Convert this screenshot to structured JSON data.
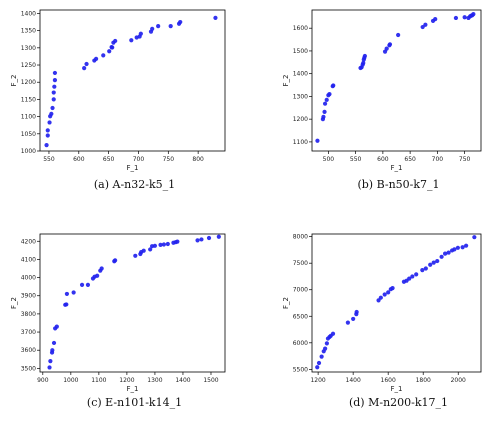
{
  "point_color": "#2222ee",
  "chart_data": [
    {
      "type": "scatter",
      "caption": "(a) A-n32-k5_1",
      "xlabel": "F_1",
      "ylabel": "F_2",
      "xlim": [
        535,
        845
      ],
      "ylim": [
        1000,
        1410
      ],
      "xticks": [
        550,
        600,
        650,
        700,
        750,
        800
      ],
      "yticks": [
        1000,
        1050,
        1100,
        1150,
        1200,
        1250,
        1300,
        1350,
        1400
      ],
      "points": [
        [
          546,
          1017
        ],
        [
          548,
          1045
        ],
        [
          548,
          1060
        ],
        [
          551,
          1083
        ],
        [
          552,
          1101
        ],
        [
          554,
          1108
        ],
        [
          556,
          1125
        ],
        [
          558,
          1150
        ],
        [
          558,
          1170
        ],
        [
          559,
          1187
        ],
        [
          560,
          1206
        ],
        [
          560,
          1227
        ],
        [
          609,
          1241
        ],
        [
          613,
          1253
        ],
        [
          626,
          1263
        ],
        [
          629,
          1268
        ],
        [
          641,
          1278
        ],
        [
          651,
          1290
        ],
        [
          655,
          1302
        ],
        [
          656,
          1301
        ],
        [
          658,
          1315
        ],
        [
          661,
          1320
        ],
        [
          688,
          1322
        ],
        [
          697,
          1330
        ],
        [
          702,
          1333
        ],
        [
          704,
          1341
        ],
        [
          721,
          1347
        ],
        [
          723,
          1355
        ],
        [
          733,
          1363
        ],
        [
          754,
          1363
        ],
        [
          768,
          1370
        ],
        [
          770,
          1375
        ],
        [
          829,
          1387
        ]
      ]
    },
    {
      "type": "scatter",
      "caption": "(b) B-n50-k7_1",
      "xlabel": "F_1",
      "ylabel": "F_2",
      "xlim": [
        470,
        780
      ],
      "ylim": [
        1060,
        1680
      ],
      "xticks": [
        500,
        550,
        600,
        650,
        700,
        750
      ],
      "yticks": [
        1100,
        1200,
        1300,
        1400,
        1500,
        1600
      ],
      "points": [
        [
          480,
          1105
        ],
        [
          490,
          1200
        ],
        [
          491,
          1210
        ],
        [
          493,
          1232
        ],
        [
          494,
          1268
        ],
        [
          497,
          1285
        ],
        [
          500,
          1305
        ],
        [
          502,
          1310
        ],
        [
          508,
          1345
        ],
        [
          509,
          1348
        ],
        [
          559,
          1425
        ],
        [
          561,
          1428
        ],
        [
          563,
          1440
        ],
        [
          564,
          1447
        ],
        [
          565,
          1462
        ],
        [
          566,
          1470
        ],
        [
          567,
          1478
        ],
        [
          604,
          1497
        ],
        [
          607,
          1510
        ],
        [
          612,
          1525
        ],
        [
          613,
          1529
        ],
        [
          628,
          1570
        ],
        [
          673,
          1605
        ],
        [
          678,
          1615
        ],
        [
          692,
          1632
        ],
        [
          696,
          1640
        ],
        [
          734,
          1645
        ],
        [
          750,
          1648
        ],
        [
          757,
          1645
        ],
        [
          760,
          1652
        ],
        [
          762,
          1655
        ],
        [
          764,
          1657
        ],
        [
          766,
          1662
        ]
      ]
    },
    {
      "type": "scatter",
      "caption": "(c) E-n101-k14_1",
      "xlabel": "F_1",
      "ylabel": "F_2",
      "xlim": [
        890,
        1550
      ],
      "ylim": [
        3480,
        4240
      ],
      "xticks": [
        900,
        1000,
        1100,
        1200,
        1300,
        1400,
        1500
      ],
      "yticks": [
        3500,
        3600,
        3700,
        3800,
        3900,
        4000,
        4100,
        4200
      ],
      "points": [
        [
          924,
          3505
        ],
        [
          927,
          3540
        ],
        [
          933,
          3587
        ],
        [
          934,
          3600
        ],
        [
          940,
          3640
        ],
        [
          944,
          3720
        ],
        [
          950,
          3730
        ],
        [
          980,
          3850
        ],
        [
          984,
          3852
        ],
        [
          986,
          3910
        ],
        [
          1010,
          3918
        ],
        [
          1040,
          3960
        ],
        [
          1061,
          3960
        ],
        [
          1079,
          3995
        ],
        [
          1085,
          4005
        ],
        [
          1094,
          4010
        ],
        [
          1105,
          4038
        ],
        [
          1110,
          4050
        ],
        [
          1155,
          4090
        ],
        [
          1158,
          4095
        ],
        [
          1230,
          4120
        ],
        [
          1248,
          4130
        ],
        [
          1251,
          4140
        ],
        [
          1260,
          4148
        ],
        [
          1283,
          4155
        ],
        [
          1290,
          4173
        ],
        [
          1300,
          4175
        ],
        [
          1320,
          4180
        ],
        [
          1332,
          4182
        ],
        [
          1346,
          4185
        ],
        [
          1366,
          4192
        ],
        [
          1374,
          4195
        ],
        [
          1380,
          4198
        ],
        [
          1452,
          4205
        ],
        [
          1466,
          4210
        ],
        [
          1493,
          4218
        ],
        [
          1528,
          4225
        ]
      ]
    },
    {
      "type": "scatter",
      "caption": "(d) M-n200-k17_1",
      "xlabel": "F_1",
      "ylabel": "F_2",
      "xlim": [
        1165,
        2130
      ],
      "ylim": [
        5450,
        8050
      ],
      "xticks": [
        1200,
        1400,
        1600,
        1800,
        2000
      ],
      "yticks": [
        5500,
        6000,
        6500,
        7000,
        7500,
        8000
      ],
      "points": [
        [
          1195,
          5540
        ],
        [
          1205,
          5620
        ],
        [
          1220,
          5740
        ],
        [
          1232,
          5840
        ],
        [
          1240,
          5890
        ],
        [
          1250,
          5990
        ],
        [
          1256,
          6080
        ],
        [
          1265,
          6110
        ],
        [
          1272,
          6130
        ],
        [
          1285,
          6170
        ],
        [
          1370,
          6380
        ],
        [
          1400,
          6450
        ],
        [
          1418,
          6540
        ],
        [
          1420,
          6580
        ],
        [
          1545,
          6800
        ],
        [
          1558,
          6850
        ],
        [
          1580,
          6910
        ],
        [
          1600,
          6950
        ],
        [
          1615,
          7010
        ],
        [
          1625,
          7030
        ],
        [
          1690,
          7150
        ],
        [
          1705,
          7170
        ],
        [
          1720,
          7210
        ],
        [
          1738,
          7250
        ],
        [
          1760,
          7290
        ],
        [
          1795,
          7370
        ],
        [
          1815,
          7400
        ],
        [
          1840,
          7470
        ],
        [
          1860,
          7510
        ],
        [
          1880,
          7540
        ],
        [
          1905,
          7620
        ],
        [
          1925,
          7680
        ],
        [
          1945,
          7700
        ],
        [
          1965,
          7740
        ],
        [
          1978,
          7760
        ],
        [
          1998,
          7790
        ],
        [
          2025,
          7800
        ],
        [
          2045,
          7830
        ],
        [
          2092,
          7990
        ]
      ]
    }
  ]
}
